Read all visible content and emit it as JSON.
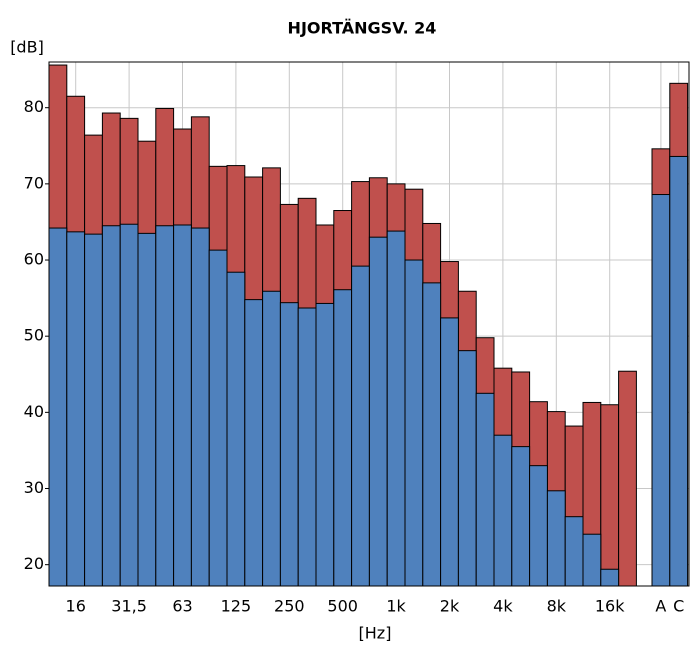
{
  "chart_data": {
    "type": "bar",
    "title": "HJORTÄNGSV. 24",
    "x_label": "[Hz]",
    "y_label": "[dB]",
    "categories": [
      null,
      "16",
      null,
      null,
      "31,5",
      null,
      null,
      "63",
      null,
      null,
      "125",
      null,
      null,
      "250",
      null,
      null,
      "500",
      null,
      null,
      "1k",
      null,
      null,
      "2k",
      null,
      null,
      "4k",
      null,
      null,
      "8k",
      null,
      null,
      "16k",
      null,
      "A",
      "C"
    ],
    "series": [
      {
        "color": "#c0504d",
        "values": [
          85.6,
          81.5,
          76.4,
          79.3,
          78.6,
          75.6,
          79.9,
          77.2,
          78.8,
          72.3,
          72.4,
          70.9,
          72.1,
          67.3,
          68.1,
          64.6,
          66.5,
          70.3,
          70.8,
          70.0,
          69.3,
          64.8,
          59.8,
          55.9,
          49.8,
          45.8,
          45.3,
          41.4,
          40.1,
          38.2,
          41.3,
          41.0,
          45.4,
          74.6,
          83.2
        ]
      },
      {
        "color": "#4f81bd",
        "values": [
          64.2,
          63.7,
          63.4,
          64.5,
          64.7,
          63.5,
          64.5,
          64.6,
          64.2,
          61.3,
          58.4,
          54.8,
          55.9,
          54.4,
          53.7,
          54.3,
          56.1,
          59.2,
          63.0,
          63.8,
          60.0,
          57.0,
          52.4,
          48.1,
          42.5,
          37.0,
          35.5,
          33.0,
          29.7,
          26.3,
          24.0,
          19.4,
          null,
          68.6,
          73.6
        ]
      }
    ],
    "ylim": [
      17.2,
      86
    ],
    "yticks": [
      20,
      30,
      40,
      50,
      60,
      70,
      80
    ],
    "grid": true
  }
}
